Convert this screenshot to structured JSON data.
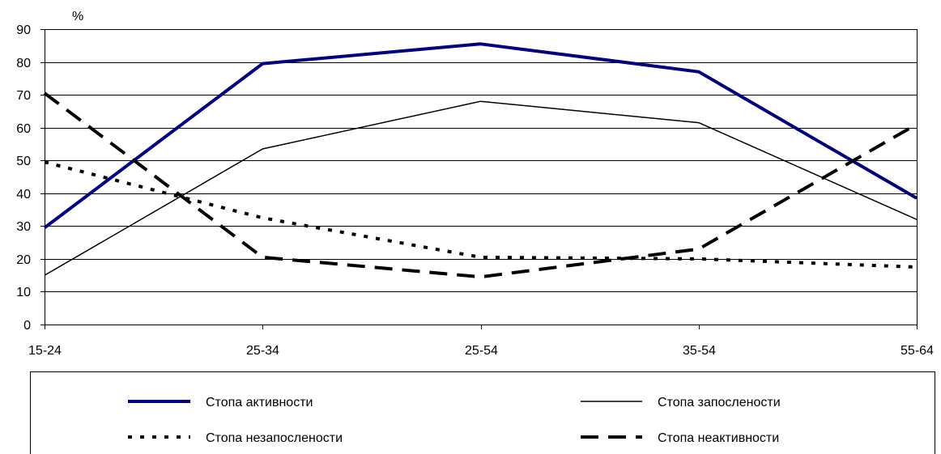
{
  "chart_data": {
    "type": "line",
    "title": "",
    "unit_label": "%",
    "xlabel": "",
    "ylabel": "",
    "categories": [
      "15-24",
      "25-34",
      "25-54",
      "35-54",
      "55-64"
    ],
    "ylim": [
      0,
      90
    ],
    "yticks": [
      0,
      10,
      20,
      30,
      40,
      50,
      60,
      70,
      80,
      90
    ],
    "grid": true,
    "legend_position": "bottom",
    "series": [
      {
        "name": "Стопа активности",
        "values": [
          29.5,
          79.5,
          85.5,
          77,
          38.5
        ],
        "color": "#000080",
        "style": "solid-thick"
      },
      {
        "name": "Стопа запослености",
        "values": [
          15,
          53.5,
          68,
          61.5,
          32
        ],
        "color": "#000000",
        "style": "solid-thin"
      },
      {
        "name": "Стопа незапослености",
        "values": [
          49.5,
          32.5,
          20.5,
          20,
          17.5
        ],
        "color": "#000000",
        "style": "dotted"
      },
      {
        "name": "Стопа неактивности",
        "values": [
          70.5,
          20.5,
          14.5,
          23,
          61
        ],
        "color": "#000000",
        "style": "dashed"
      }
    ]
  }
}
